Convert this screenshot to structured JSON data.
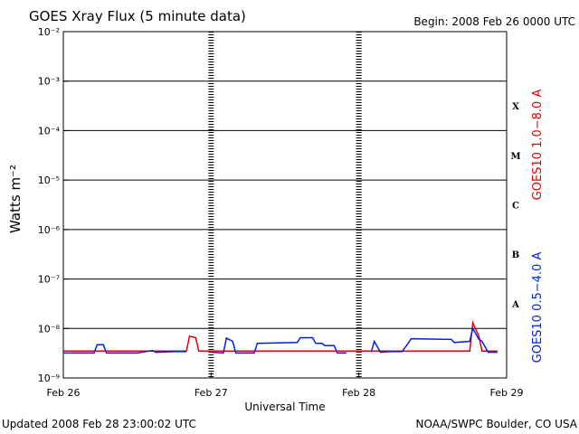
{
  "chart_data": {
    "type": "line",
    "title": "GOES Xray Flux (5 minute data)",
    "subtitle": "Begin:  2008 Feb 26 0000 UTC",
    "y_label": "Watts m⁻²",
    "x_label": "Universal Time",
    "footer_left": "Updated 2008 Feb 28 23:00:02 UTC",
    "footer_right": "NOAA/SWPC Boulder, CO USA",
    "log_scale": true,
    "grid": true,
    "flare_classes": [
      "X",
      "M",
      "C",
      "B",
      "A"
    ],
    "xlim": [
      "2008-02-26 00:00",
      "2008-02-29 00:00"
    ],
    "xticks": [
      {
        "value": "2008-02-26 00:00",
        "label": "Feb 26"
      },
      {
        "value": "2008-02-27 00:00",
        "label": "Feb 27"
      },
      {
        "value": "2008-02-28 00:00",
        "label": "Feb 28"
      },
      {
        "value": "2008-02-29 00:00",
        "label": "Feb 29"
      }
    ],
    "ylim": [
      1e-09,
      0.01
    ],
    "yticks": [
      {
        "value": 0.01,
        "label": "10⁻²"
      },
      {
        "value": 0.001,
        "label": "10⁻³"
      },
      {
        "value": 0.0001,
        "label": "10⁻⁴"
      },
      {
        "value": 1e-05,
        "label": "10⁻⁵"
      },
      {
        "value": 1e-06,
        "label": "10⁻⁶"
      },
      {
        "value": 1e-07,
        "label": "10⁻⁷"
      },
      {
        "value": 1e-08,
        "label": "10⁻⁸"
      },
      {
        "value": 1e-09,
        "label": "10⁻⁹"
      }
    ],
    "x": [
      "2008-02-26 00:00",
      "2008-02-26 05:00",
      "2008-02-26 05:30",
      "2008-02-26 06:30",
      "2008-02-26 07:00",
      "2008-02-26 12:00",
      "2008-02-26 14:30",
      "2008-02-26 15:00",
      "2008-02-26 18:00",
      "2008-02-26 20:00",
      "2008-02-26 20:30",
      "2008-02-26 21:30",
      "2008-02-26 22:00",
      "2008-02-27 00:00",
      "2008-02-27 02:00",
      "2008-02-27 02:30",
      "2008-02-27 03:30",
      "2008-02-27 04:00",
      "2008-02-27 07:00",
      "2008-02-27 07:30",
      "2008-02-27 14:00",
      "2008-02-27 14:30",
      "2008-02-27 16:30",
      "2008-02-27 17:00",
      "2008-02-27 18:00",
      "2008-02-27 18:30",
      "2008-02-27 20:00",
      "2008-02-27 20:30",
      "2008-02-27 22:00",
      "2008-02-28 00:00",
      "2008-02-28 02:00",
      "2008-02-28 02:30",
      "2008-02-28 03:30",
      "2008-02-28 05:00",
      "2008-02-28 07:00",
      "2008-02-28 08:00",
      "2008-02-28 08:30",
      "2008-02-28 15:00",
      "2008-02-28 15:30",
      "2008-02-28 18:00",
      "2008-02-28 18:30",
      "2008-02-28 19:30",
      "2008-02-28 20:00",
      "2008-02-28 21:00",
      "2008-02-28 22:30"
    ],
    "series": [
      {
        "name": "GOES10 1.0−8.0 A",
        "color": "#e00000",
        "values": [
          3.5e-09,
          3.5e-09,
          3.5e-09,
          3.5e-09,
          3.5e-09,
          3.5e-09,
          3.5e-09,
          3.5e-09,
          3.5e-09,
          3.5e-09,
          7e-09,
          6.5e-09,
          3.5e-09,
          3.5e-09,
          3.5e-09,
          3.5e-09,
          3.5e-09,
          3.5e-09,
          3.5e-09,
          3.5e-09,
          3.5e-09,
          3.5e-09,
          3.5e-09,
          3.5e-09,
          3.5e-09,
          3.5e-09,
          3.5e-09,
          3.5e-09,
          3.5e-09,
          3.5e-09,
          3.5e-09,
          3.5e-09,
          3.5e-09,
          3.5e-09,
          3.5e-09,
          3.5e-09,
          3.5e-09,
          3.5e-09,
          3.5e-09,
          3.5e-09,
          1.3e-08,
          7e-09,
          3.5e-09,
          3.5e-09,
          3.5e-09
        ]
      },
      {
        "name": "GOES10 0.5−4.0 A",
        "color": "#0020e0",
        "values": [
          3.2e-09,
          3.2e-09,
          4.7e-09,
          4.7e-09,
          3.2e-09,
          3.2e-09,
          3.6e-09,
          3.3e-09,
          3.4e-09,
          3.4e-09,
          null,
          null,
          null,
          3.3e-09,
          3.2e-09,
          6.4e-09,
          5.5e-09,
          3.2e-09,
          3.2e-09,
          5e-09,
          5.2e-09,
          6.5e-09,
          6.5e-09,
          5e-09,
          5e-09,
          4.5e-09,
          4.5e-09,
          3.2e-09,
          3.2e-09,
          null,
          3.3e-09,
          5.5e-09,
          3.3e-09,
          3.4e-09,
          3.4e-09,
          5e-09,
          6.2e-09,
          6e-09,
          5.2e-09,
          5.5e-09,
          1e-08,
          6e-09,
          5.5e-09,
          3.3e-09,
          3.3e-09
        ]
      }
    ]
  }
}
